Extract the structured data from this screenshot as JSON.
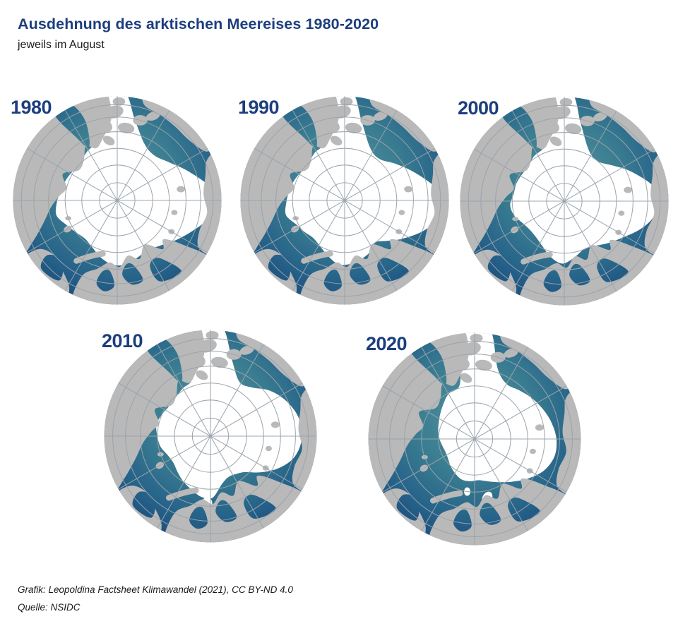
{
  "header": {
    "title": "Ausdehnung des arktischen Meereises 1980-2020",
    "subtitle": "jeweils im August"
  },
  "maps": [
    {
      "year": "1980"
    },
    {
      "year": "1990"
    },
    {
      "year": "2000"
    },
    {
      "year": "2010"
    },
    {
      "year": "2020"
    }
  ],
  "footer": {
    "credit": "Grafik: Leopoldina Factsheet Klimawandel (2021), CC BY-ND 4.0",
    "source": "Quelle: NSIDC"
  },
  "colors": {
    "title_navy": "#1d3e7e",
    "text_black": "#1a1a1a",
    "land_gray": "#b9b9b9",
    "ice_white": "#ffffff",
    "graticule_gray": "#99a3ab",
    "ocean_light": "#55929f",
    "ocean_mid": "#3a7d91",
    "ocean_deep": "#27648a",
    "ocean_dark": "#174a7c",
    "background": "#ffffff"
  }
}
